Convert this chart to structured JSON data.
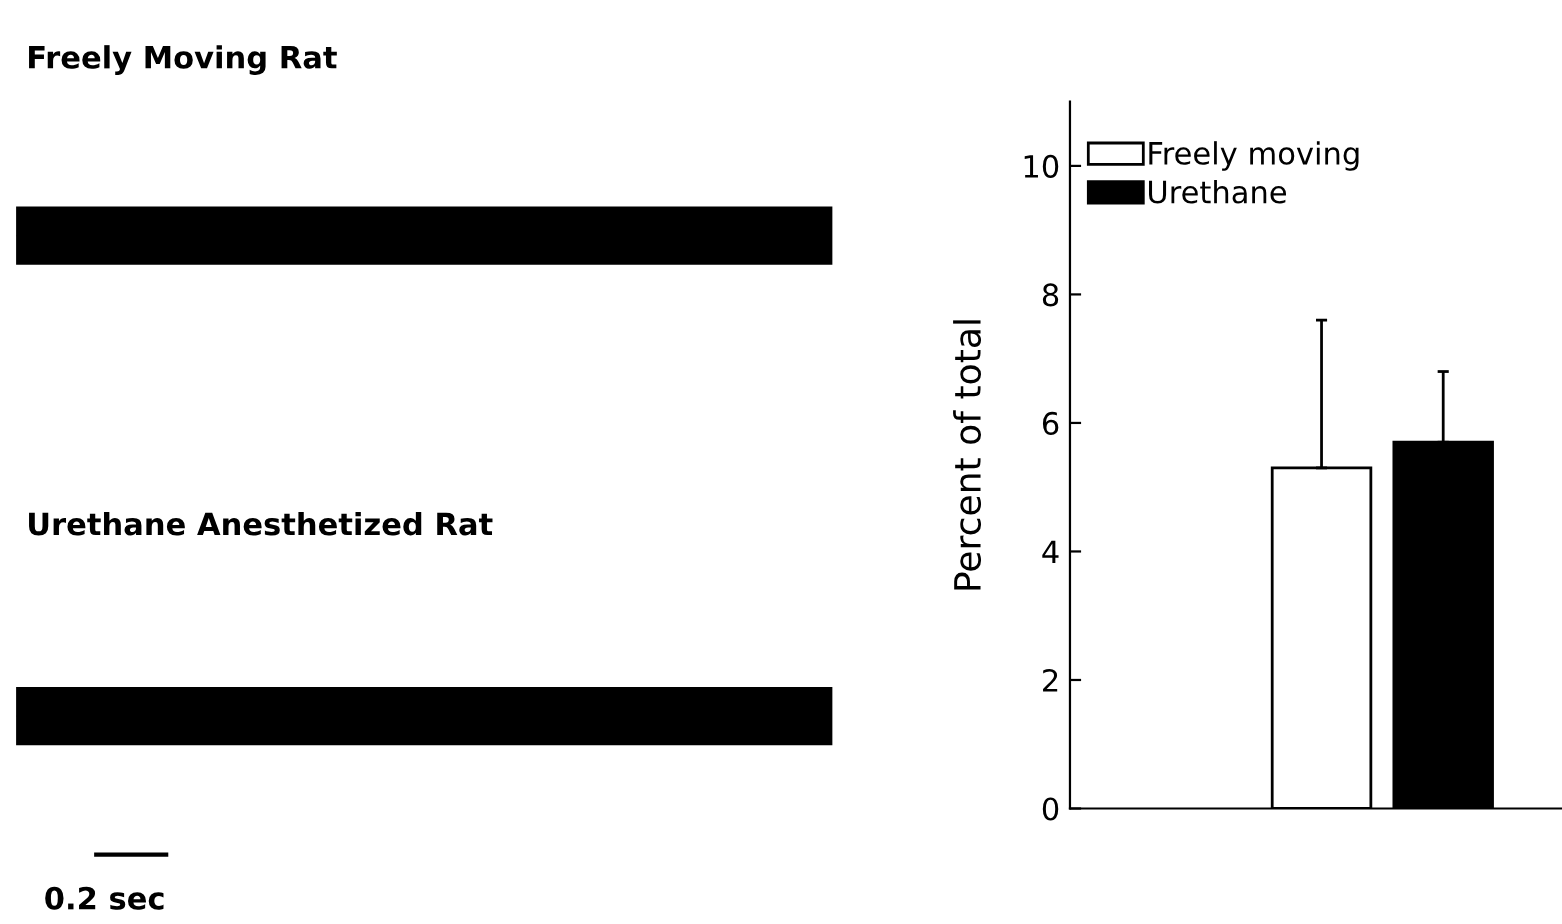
{
  "chart_data": [
    {
      "type": "other",
      "annotations": [
        "Freely Moving Rat",
        "Urethane Anesthetized Rat",
        "0.2 sec"
      ]
    },
    {
      "type": "bar",
      "ylabel": "Percent of total",
      "categories": [
        null
      ],
      "ylim": [
        0,
        11
      ],
      "yticks": [
        0,
        2,
        4,
        6,
        8,
        10
      ],
      "legend": "top left",
      "grid": false,
      "series": [
        {
          "name": "Freely moving",
          "color": "#ffffff",
          "values": [
            5.3
          ],
          "errors": [
            [
              5.3,
              7.6
            ]
          ]
        },
        {
          "name": "Urethane",
          "color": "#000000",
          "values": [
            5.7
          ],
          "errors": [
            [
              5.7,
              6.8
            ]
          ]
        }
      ]
    }
  ]
}
